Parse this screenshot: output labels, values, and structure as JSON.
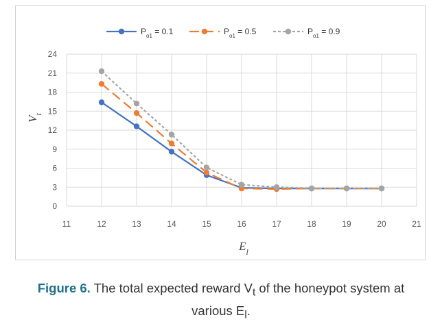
{
  "chart_data": {
    "type": "line",
    "x": [
      12,
      13,
      14,
      15,
      16,
      17,
      18,
      19,
      20
    ],
    "xlim": [
      11,
      21
    ],
    "xticks": [
      "11",
      "12",
      "13",
      "14",
      "15",
      "16",
      "17",
      "18",
      "19",
      "20",
      "21"
    ],
    "ylim": [
      0,
      24
    ],
    "yticks": [
      "0",
      "3",
      "6",
      "9",
      "12",
      "15",
      "18",
      "21",
      "24"
    ],
    "xlabel": "E_l",
    "ylabel": "V_t",
    "grid": true,
    "legend_position": "top-center",
    "series": [
      {
        "name": "Po1 = 0.1",
        "color": "#4472c4",
        "dash": "solid",
        "values": [
          16.4,
          12.6,
          8.6,
          4.9,
          2.9,
          2.8,
          2.8,
          2.8,
          2.8
        ]
      },
      {
        "name": "Po1 = 0.5",
        "color": "#ed7d31",
        "dash": "long-dash",
        "values": [
          19.3,
          14.7,
          9.9,
          5.3,
          2.8,
          2.7,
          2.8,
          2.8,
          2.8
        ]
      },
      {
        "name": "Po1 = 0.9",
        "color": "#a5a5a5",
        "dash": "short-dash",
        "values": [
          21.3,
          16.2,
          11.3,
          6.1,
          3.4,
          3.0,
          2.8,
          2.8,
          2.8
        ]
      }
    ]
  },
  "legend": [
    {
      "prefix": "P",
      "sub": "o1",
      "suffix": " = 0.1"
    },
    {
      "prefix": "P",
      "sub": "o1",
      "suffix": " = 0.5"
    },
    {
      "prefix": "P",
      "sub": "o1",
      "suffix": " = 0.9"
    }
  ],
  "axis_labels": {
    "y_main": "V",
    "y_sub": "t",
    "x_main": "E",
    "x_sub": "l"
  },
  "caption": {
    "label": "Figure 6.",
    "text_before": " The total expected reward V",
    "sub1": "t",
    "text_mid": " of the honeypot system at",
    "line2_before": "various E",
    "sub2": "l",
    "line2_after": "."
  }
}
